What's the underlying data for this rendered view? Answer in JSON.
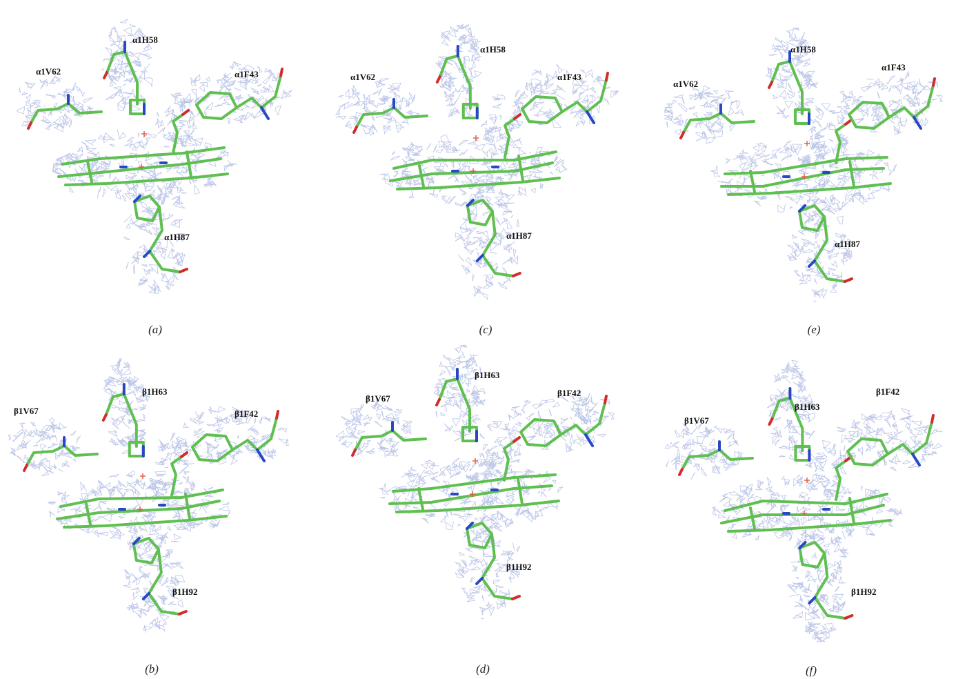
{
  "figure": {
    "colors": {
      "mesh": "#b8c2e6",
      "carbon": "#5fbf50",
      "nitrogen": "#2747c4",
      "oxygen": "#d22d2d",
      "water_marker": "#e8553a"
    },
    "panels": [
      {
        "letter": "(a)",
        "labels": [
          "α1V62",
          "α1H58",
          "α1F43",
          "α1H87"
        ]
      },
      {
        "letter": "(c)",
        "labels": [
          "α1V62",
          "α1H58",
          "α1F43",
          "α1H87"
        ]
      },
      {
        "letter": "(e)",
        "labels": [
          "α1V62",
          "α1H58",
          "α1F43",
          "α1H87"
        ]
      },
      {
        "letter": "(b)",
        "labels": [
          "β1V67",
          "β1H63",
          "β1F42",
          "β1H92"
        ]
      },
      {
        "letter": "(d)",
        "labels": [
          "β1V67",
          "β1H63",
          "β1F42",
          "β1H92"
        ]
      },
      {
        "letter": "(f)",
        "labels": [
          "β1V67",
          "β1H63",
          "β1F42",
          "β1H92"
        ]
      }
    ]
  }
}
